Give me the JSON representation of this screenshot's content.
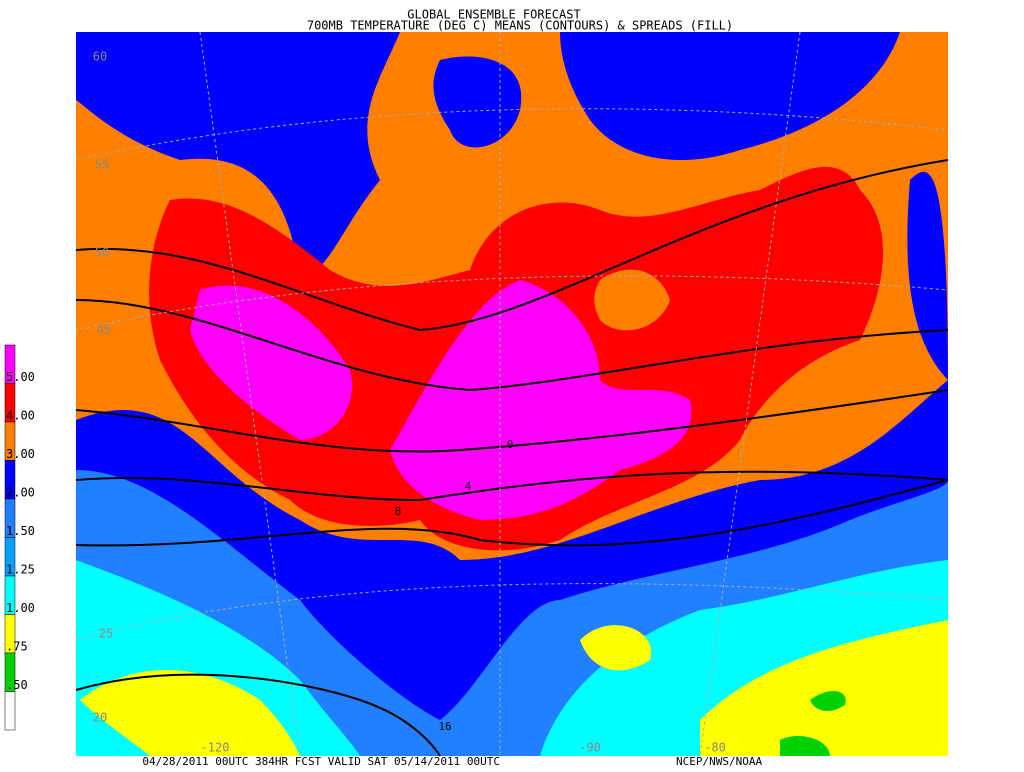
{
  "header": {
    "line1": "GLOBAL ENSEMBLE FORECAST",
    "line2": "700MB TEMPERATURE (DEG C) MEANS (CONTOURS) & SPREADS (FILL)"
  },
  "footer": {
    "left": "04/28/2011 00UTC 384HR FCST VALID SAT 05/14/2011 00UTC",
    "right": "NCEP/NWS/NOAA"
  },
  "legend": [
    {
      "label": null,
      "color": "#ff00ff"
    },
    {
      "label": "5.00",
      "color": "#ff0000"
    },
    {
      "label": "4.00",
      "color": "#ff8000"
    },
    {
      "label": "3.00",
      "color": "#0000ff"
    },
    {
      "label": "2.00",
      "color": "#2080ff"
    },
    {
      "label": "1.50",
      "color": "#00a0ff"
    },
    {
      "label": "1.25",
      "color": "#00ffff"
    },
    {
      "label": "1.00",
      "color": "#ffff00"
    },
    {
      "label": ".75",
      "color": "#00d000"
    },
    {
      "label": ".50",
      "color": "#ffffff"
    }
  ],
  "latitudes": [
    "60",
    "55",
    "50",
    "45",
    "25",
    "20"
  ],
  "longitudes": [
    "-120",
    "-90",
    "-80"
  ],
  "contour_labels": [
    "16",
    "8",
    "4",
    "0"
  ]
}
